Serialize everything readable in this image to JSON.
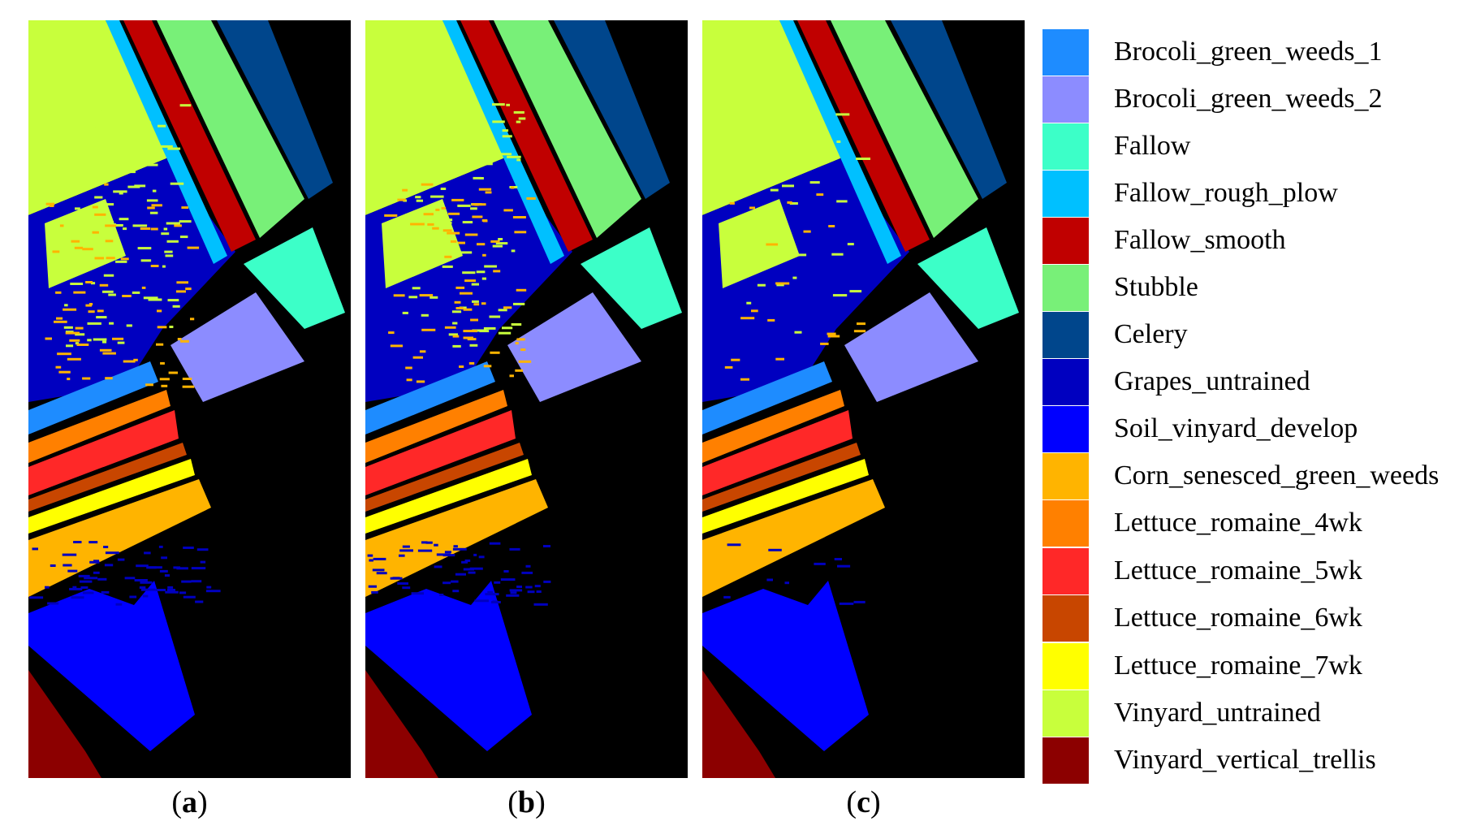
{
  "panels": [
    {
      "id": "a",
      "caption_letter": "a"
    },
    {
      "id": "b",
      "caption_letter": "b"
    },
    {
      "id": "c",
      "caption_letter": "c"
    }
  ],
  "legend": [
    {
      "label": "Brocoli_green_weeds_1",
      "color": "#1e8cff"
    },
    {
      "label": "Brocoli_green_weeds_2",
      "color": "#8c8cff"
    },
    {
      "label": "Fallow",
      "color": "#3cffc8"
    },
    {
      "label": "Fallow_rough_plow",
      "color": "#00c0ff"
    },
    {
      "label": "Fallow_smooth",
      "color": "#c00000"
    },
    {
      "label": "Stubble",
      "color": "#78f078"
    },
    {
      "label": "Celery",
      "color": "#00468c"
    },
    {
      "label": "Grapes_untrained",
      "color": "#0000c0"
    },
    {
      "label": "Soil_vinyard_develop",
      "color": "#0000ff"
    },
    {
      "label": "Corn_senesced_green_weeds",
      "color": "#ffb400"
    },
    {
      "label": "Lettuce_romaine_4wk",
      "color": "#ff8000"
    },
    {
      "label": "Lettuce_romaine_5wk",
      "color": "#ff2828"
    },
    {
      "label": "Lettuce_romaine_6wk",
      "color": "#c84600"
    },
    {
      "label": "Lettuce_romaine_7wk",
      "color": "#ffff00"
    },
    {
      "label": "Vinyard_untrained",
      "color": "#c8ff3c"
    },
    {
      "label": "Vinyard_vertical_trellis",
      "color": "#8c0000"
    }
  ]
}
